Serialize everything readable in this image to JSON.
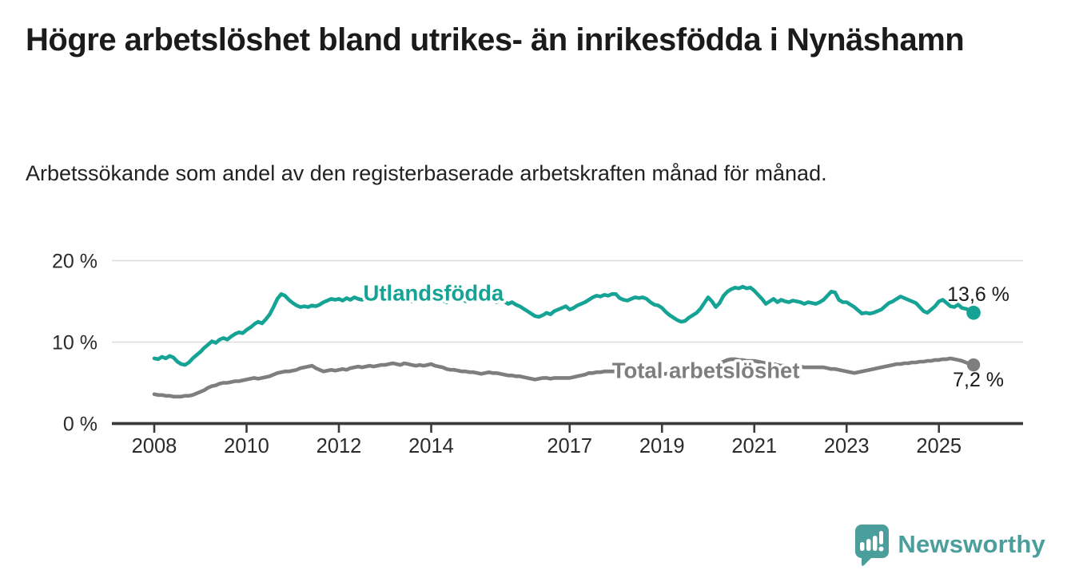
{
  "header": {
    "title": "Högre arbetslöshet bland utrikes- än inrikesfödda i Nynäshamn",
    "subtitle": "Arbetssökande som andel av den registerbaserade arbetskraften månad för månad."
  },
  "footer": {
    "brand": "Newsworthy"
  },
  "colors": {
    "series_foreign": "#14a394",
    "series_total": "#7e7e7e",
    "axis": "#3b3b3b",
    "grid": "#dcdcdc",
    "text": "#1b1b1b",
    "tick_label": "#2b2b2b",
    "value_label": "#1a1a1a",
    "brand": "#4a9e9b",
    "background": "#ffffff"
  },
  "chart_data": {
    "type": "line",
    "title": "Högre arbetslöshet bland utrikes- än inrikesfödda i Nynäshamn",
    "subtitle": "Arbetssökande som andel av den registerbaserade arbetskraften månad för månad.",
    "x_unit": "month",
    "x_start": "2008-01",
    "x_end": "2025-10",
    "x_domain_years": [
      2008.0,
      2025.75
    ],
    "ylim": [
      0,
      21.5
    ],
    "grid": "horizontal",
    "legend_position": "inline-labels",
    "yticks": [
      {
        "value": 0,
        "label": "0 %"
      },
      {
        "value": 10,
        "label": "10 %"
      },
      {
        "value": 20,
        "label": "20 %"
      }
    ],
    "xticks": [
      {
        "year": 2008,
        "label": "2008"
      },
      {
        "year": 2010,
        "label": "2010"
      },
      {
        "year": 2012,
        "label": "2012"
      },
      {
        "year": 2014,
        "label": "2014"
      },
      {
        "year": 2017,
        "label": "2017"
      },
      {
        "year": 2019,
        "label": "2019"
      },
      {
        "year": 2021,
        "label": "2021"
      },
      {
        "year": 2023,
        "label": "2023"
      },
      {
        "year": 2025,
        "label": "2025"
      }
    ],
    "series": [
      {
        "name": "Utlandsfödda",
        "color": "#14a394",
        "end_value": 13.6,
        "end_label": "13,6 %",
        "label_anchor": {
          "year": 2014.05,
          "value": 16.1
        },
        "values": [
          8.0,
          7.9,
          8.2,
          8.0,
          8.3,
          8.1,
          7.6,
          7.3,
          7.2,
          7.5,
          8.0,
          8.4,
          8.8,
          9.3,
          9.7,
          10.1,
          9.9,
          10.3,
          10.5,
          10.3,
          10.7,
          11.0,
          11.2,
          11.1,
          11.5,
          11.8,
          12.2,
          12.5,
          12.3,
          12.8,
          13.4,
          14.3,
          15.3,
          15.9,
          15.7,
          15.2,
          14.8,
          14.5,
          14.3,
          14.4,
          14.3,
          14.5,
          14.4,
          14.6,
          14.9,
          15.1,
          15.3,
          15.2,
          15.3,
          15.1,
          15.4,
          15.2,
          15.5,
          15.3,
          15.2,
          15.4,
          15.6,
          15.4,
          15.3,
          15.5,
          15.4,
          15.2,
          15.5,
          15.3,
          15.1,
          15.4,
          15.2,
          15.0,
          15.3,
          15.5,
          15.2,
          15.4,
          15.2,
          15.0,
          15.3,
          15.1,
          14.9,
          15.2,
          15.4,
          15.1,
          15.3,
          15.0,
          15.2,
          15.1,
          15.3,
          15.5,
          15.2,
          15.4,
          15.1,
          14.9,
          15.2,
          15.0,
          14.7,
          14.9,
          14.6,
          14.4,
          14.1,
          13.8,
          13.5,
          13.2,
          13.1,
          13.3,
          13.6,
          13.4,
          13.8,
          14.0,
          14.2,
          14.4,
          14.0,
          14.2,
          14.5,
          14.7,
          14.9,
          15.2,
          15.5,
          15.7,
          15.6,
          15.8,
          15.7,
          15.9,
          15.9,
          15.4,
          15.2,
          15.1,
          15.3,
          15.5,
          15.4,
          15.5,
          15.3,
          14.9,
          14.6,
          14.5,
          14.2,
          13.7,
          13.3,
          13.0,
          12.7,
          12.5,
          12.6,
          13.0,
          13.3,
          13.6,
          14.1,
          14.8,
          15.5,
          15.0,
          14.3,
          14.8,
          15.7,
          16.2,
          16.5,
          16.7,
          16.6,
          16.8,
          16.6,
          16.7,
          16.3,
          15.8,
          15.3,
          14.7,
          15.0,
          15.3,
          14.9,
          15.2,
          15.0,
          14.9,
          15.1,
          15.0,
          14.9,
          14.7,
          14.9,
          14.8,
          14.7,
          14.9,
          15.2,
          15.7,
          16.2,
          16.1,
          15.2,
          14.9,
          14.9,
          14.6,
          14.3,
          13.9,
          13.5,
          13.6,
          13.5,
          13.6,
          13.8,
          14.0,
          14.4,
          14.8,
          15.0,
          15.3,
          15.6,
          15.4,
          15.2,
          15.0,
          14.8,
          14.3,
          13.8,
          13.6,
          14.0,
          14.4,
          15.0,
          15.2,
          14.8,
          14.4,
          14.3,
          14.6,
          14.2,
          14.1,
          13.9,
          13.6
        ]
      },
      {
        "name": "Total arbetslöshet",
        "color": "#7e7e7e",
        "end_value": 7.2,
        "end_label": "7,2 %",
        "label_anchor": {
          "year": 2019.95,
          "value": 6.55
        },
        "values": [
          3.6,
          3.5,
          3.5,
          3.4,
          3.4,
          3.3,
          3.3,
          3.3,
          3.4,
          3.4,
          3.5,
          3.7,
          3.9,
          4.1,
          4.4,
          4.6,
          4.7,
          4.9,
          5.0,
          5.0,
          5.1,
          5.2,
          5.2,
          5.3,
          5.4,
          5.5,
          5.6,
          5.5,
          5.6,
          5.7,
          5.8,
          6.0,
          6.2,
          6.3,
          6.4,
          6.4,
          6.5,
          6.6,
          6.8,
          6.9,
          7.0,
          7.1,
          6.8,
          6.6,
          6.4,
          6.5,
          6.6,
          6.5,
          6.6,
          6.7,
          6.6,
          6.8,
          6.9,
          7.0,
          6.9,
          7.0,
          7.1,
          7.0,
          7.1,
          7.2,
          7.2,
          7.3,
          7.4,
          7.3,
          7.2,
          7.4,
          7.3,
          7.2,
          7.1,
          7.2,
          7.1,
          7.2,
          7.3,
          7.1,
          7.0,
          6.9,
          6.7,
          6.6,
          6.6,
          6.5,
          6.4,
          6.4,
          6.3,
          6.3,
          6.2,
          6.1,
          6.2,
          6.3,
          6.2,
          6.2,
          6.1,
          6.0,
          5.9,
          5.9,
          5.8,
          5.8,
          5.7,
          5.6,
          5.5,
          5.4,
          5.5,
          5.6,
          5.6,
          5.5,
          5.6,
          5.6,
          5.6,
          5.6,
          5.6,
          5.7,
          5.8,
          5.9,
          6.0,
          6.2,
          6.2,
          6.3,
          6.3,
          6.4,
          6.4,
          6.4,
          6.4,
          6.3,
          6.3,
          6.2,
          6.2,
          6.1,
          6.1,
          6.1,
          6.0,
          6.0,
          6.1,
          6.1,
          6.1,
          6.1,
          6.2,
          6.2,
          6.2,
          6.3,
          6.3,
          6.4,
          6.4,
          6.5,
          6.5,
          6.6,
          6.7,
          6.8,
          7.0,
          7.4,
          7.6,
          7.8,
          7.9,
          7.9,
          7.8,
          7.8,
          7.7,
          7.7,
          7.7,
          7.6,
          7.5,
          7.4,
          7.3,
          7.3,
          7.2,
          7.1,
          7.1,
          7.0,
          7.0,
          7.0,
          7.0,
          6.9,
          6.9,
          6.9,
          6.9,
          6.9,
          6.9,
          6.8,
          6.7,
          6.7,
          6.6,
          6.5,
          6.4,
          6.3,
          6.2,
          6.3,
          6.4,
          6.5,
          6.6,
          6.7,
          6.8,
          6.9,
          7.0,
          7.1,
          7.2,
          7.3,
          7.3,
          7.4,
          7.4,
          7.5,
          7.5,
          7.6,
          7.6,
          7.7,
          7.7,
          7.8,
          7.8,
          7.9,
          7.9,
          8.0,
          7.9,
          7.8,
          7.7,
          7.5,
          7.3,
          7.2
        ]
      }
    ]
  }
}
